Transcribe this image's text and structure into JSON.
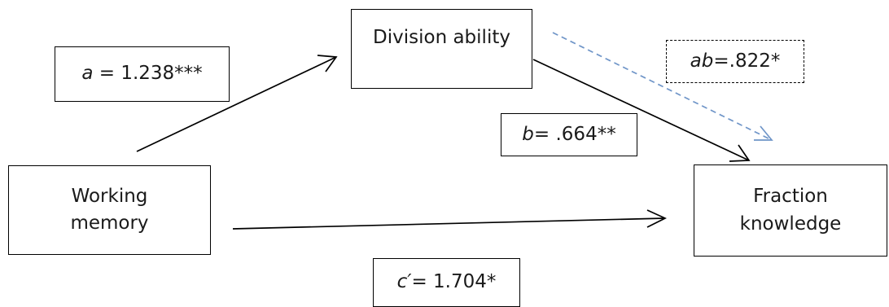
{
  "nodes": {
    "working_memory": "Working\nmemory",
    "division_ability": "Division ability",
    "fraction_knowledge": "Fraction\nknowledge"
  },
  "paths": {
    "a": {
      "symbol": "a",
      "text": " = 1.238***"
    },
    "b": {
      "symbol": "b",
      "text": "= .664**"
    },
    "ab": {
      "symbol": "ab",
      "text": "=.822*"
    },
    "c_prime": {
      "symbol": "c′",
      "text": "= 1.704*"
    }
  },
  "colors": {
    "solid_arrow": "#000000",
    "indirect_arrow": "#6f95c8"
  }
}
